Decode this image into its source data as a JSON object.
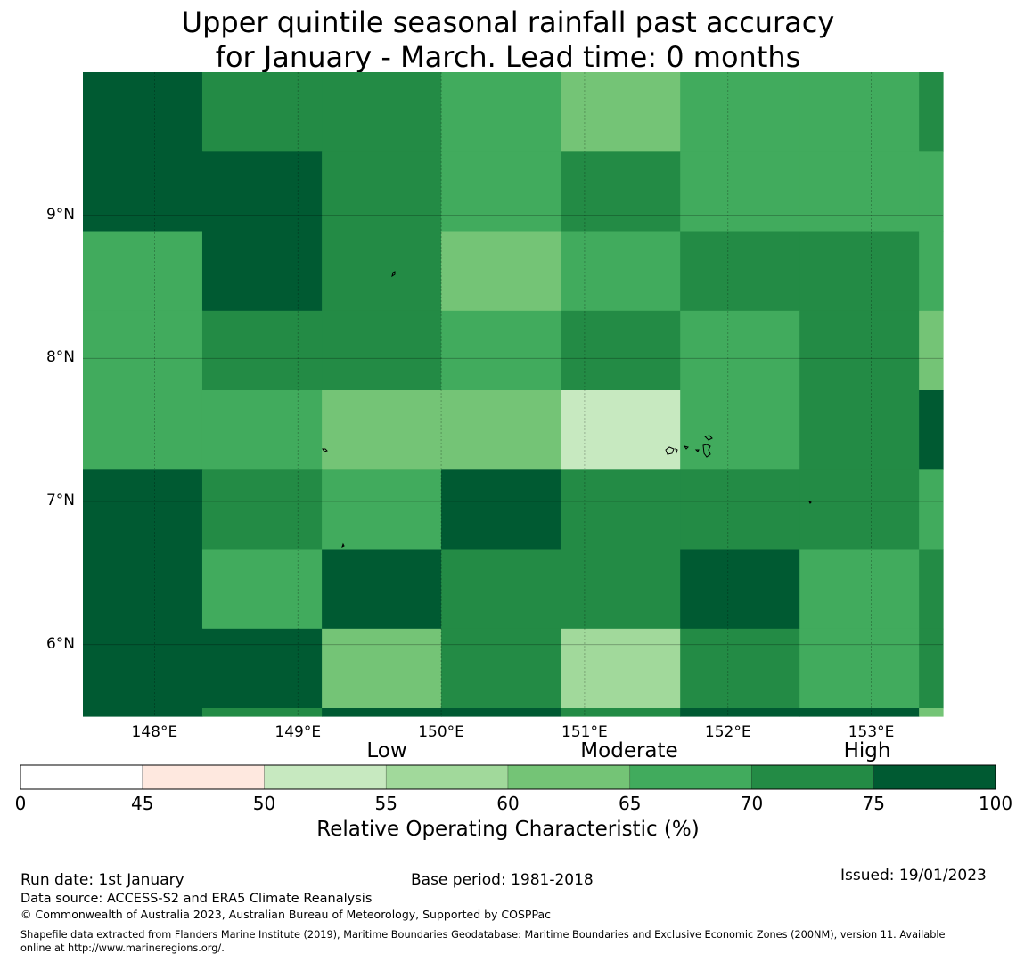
{
  "title": {
    "line1": "Upper quintile seasonal rainfall past accuracy",
    "line2": "for January - March. Lead time: 0 months"
  },
  "map": {
    "lat_labels": [
      "9°N",
      "8°N",
      "7°N",
      "6°N"
    ],
    "lon_labels": [
      "148°E",
      "149°E",
      "150°E",
      "151°E",
      "152°E",
      "153°E"
    ],
    "lat_values": [
      9,
      8,
      7,
      6
    ],
    "lon_values": [
      148,
      149,
      150,
      151,
      152,
      153
    ],
    "extent": {
      "lon_min": 147.5,
      "lon_max": 153.5,
      "lat_min": 5.5,
      "lat_max": 10.0
    },
    "grid_columns_lon": [
      147.5,
      148.333,
      149.167,
      150.0,
      150.833,
      151.667,
      152.5,
      153.333,
      153.5
    ],
    "grid_rows_lat": [
      10.0,
      9.444,
      8.889,
      8.333,
      7.778,
      7.222,
      6.667,
      6.111,
      5.556,
      5.5
    ],
    "roc_classes": [
      [
        75,
        70,
        70,
        65,
        60,
        65,
        65,
        70
      ],
      [
        75,
        75,
        70,
        65,
        70,
        65,
        65,
        65
      ],
      [
        65,
        75,
        70,
        60,
        65,
        70,
        70,
        65
      ],
      [
        65,
        70,
        70,
        65,
        70,
        65,
        70,
        60
      ],
      [
        65,
        65,
        60,
        60,
        50,
        65,
        70,
        75
      ],
      [
        75,
        70,
        65,
        75,
        70,
        70,
        70,
        65
      ],
      [
        75,
        65,
        75,
        70,
        70,
        75,
        65,
        70
      ],
      [
        75,
        75,
        60,
        70,
        55,
        70,
        65,
        70
      ],
      [
        75,
        70,
        75,
        75,
        70,
        75,
        75,
        60
      ]
    ]
  },
  "colorbar": {
    "ticks": [
      0,
      45,
      50,
      55,
      60,
      65,
      70,
      75,
      100
    ],
    "tick_labels": [
      "0",
      "45",
      "50",
      "55",
      "60",
      "65",
      "70",
      "75",
      "100"
    ],
    "colors": [
      "#ffffff",
      "#fee8df",
      "#c7e9c0",
      "#a1d99b",
      "#74c476",
      "#41ab5d",
      "#238b45",
      "#005a32"
    ],
    "categories": [
      "Low",
      "Moderate",
      "High"
    ],
    "label": "Relative Operating Characteristic (%)"
  },
  "footer": {
    "run_date": "Run date: 1st January",
    "base_period": "Base period: 1981-2018",
    "issued": "Issued: 19/01/2023",
    "data_source": "Data source: ACCESS-S2 and ERA5 Climate Reanalysis",
    "copyright": "© Commonwealth of Australia 2023, Australian Bureau of Meteorology, Supported by COSPPac",
    "shapefile_line1": "Shapefile data extracted from Flanders Marine Institute (2019), Maritime Boundaries Geodatabase: Maritime Boundaries and Exclusive Economic Zones (200NM), version 11. Available",
    "shapefile_line2": "online at http://www.marineregions.org/."
  }
}
